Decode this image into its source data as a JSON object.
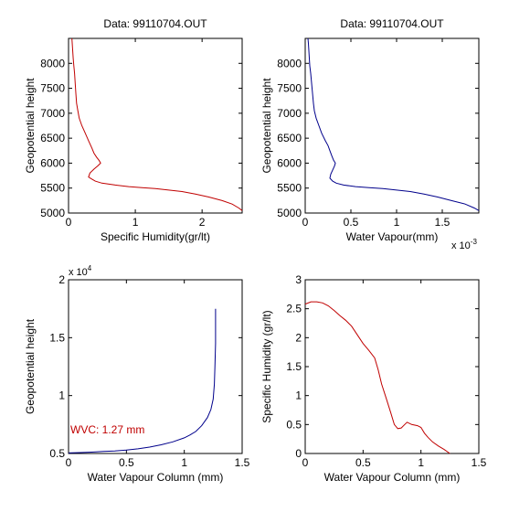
{
  "chart_data": [
    {
      "type": "line",
      "title": "Data: 99110704.OUT",
      "xlabel": "Specific Humidity(gr/lt)",
      "ylabel": "Geopotential height",
      "x_exponent": "",
      "y_exponent": "",
      "xlim": [
        0,
        2.6
      ],
      "ylim": [
        5000,
        8500
      ],
      "xticks": [
        0,
        1,
        2
      ],
      "yticks": [
        5000,
        5500,
        6000,
        6500,
        7000,
        7500,
        8000
      ],
      "xtick_labels": [
        "0",
        "1",
        "2"
      ],
      "ytick_labels": [
        "5000",
        "5500",
        "6000",
        "6500",
        "7000",
        "7500",
        "8000"
      ],
      "color": "#c00000",
      "series": [
        {
          "x": [
            2.6,
            2.55,
            2.45,
            2.3,
            2.1,
            1.9,
            1.7,
            1.5,
            1.3,
            1.1,
            0.9,
            0.7,
            0.5,
            0.4,
            0.35,
            0.3,
            0.32,
            0.38,
            0.44,
            0.48,
            0.46,
            0.42,
            0.38,
            0.35,
            0.3,
            0.25,
            0.2,
            0.16,
            0.14,
            0.12,
            0.11,
            0.1,
            0.09,
            0.08,
            0.07,
            0.06,
            0.05
          ],
          "y": [
            5050,
            5100,
            5180,
            5250,
            5320,
            5380,
            5430,
            5460,
            5490,
            5510,
            5530,
            5560,
            5600,
            5640,
            5680,
            5720,
            5800,
            5880,
            5950,
            6000,
            6050,
            6120,
            6200,
            6300,
            6450,
            6600,
            6750,
            6900,
            7050,
            7200,
            7400,
            7600,
            7800,
            7950,
            8100,
            8300,
            8500
          ]
        }
      ]
    },
    {
      "type": "line",
      "title": "Data: 99110704.OUT",
      "xlabel": "Water Vapour(mm)",
      "ylabel": "Geopotential height",
      "x_exponent": "x 10",
      "x_exponent_power": "-3",
      "y_exponent": "",
      "xlim": [
        0,
        1.9
      ],
      "ylim": [
        5000,
        8500
      ],
      "xticks": [
        0,
        0.5,
        1,
        1.5
      ],
      "yticks": [
        5000,
        5500,
        6000,
        6500,
        7000,
        7500,
        8000
      ],
      "xtick_labels": [
        "0",
        "0.5",
        "1",
        "1.5"
      ],
      "ytick_labels": [
        "5000",
        "5500",
        "6000",
        "6500",
        "7000",
        "7500",
        "8000"
      ],
      "color": "#00008b",
      "series": [
        {
          "x": [
            1.9,
            1.85,
            1.75,
            1.6,
            1.45,
            1.3,
            1.15,
            1.0,
            0.85,
            0.7,
            0.55,
            0.42,
            0.34,
            0.3,
            0.27,
            0.28,
            0.3,
            0.32,
            0.33,
            0.31,
            0.29,
            0.27,
            0.25,
            0.22,
            0.18,
            0.15,
            0.12,
            0.1,
            0.09,
            0.08,
            0.07,
            0.06,
            0.05,
            0.045,
            0.04,
            0.035,
            0.03
          ],
          "y": [
            5050,
            5100,
            5180,
            5250,
            5320,
            5380,
            5430,
            5460,
            5490,
            5510,
            5530,
            5560,
            5600,
            5640,
            5700,
            5780,
            5860,
            5940,
            6000,
            6060,
            6150,
            6250,
            6350,
            6450,
            6600,
            6750,
            6900,
            7050,
            7200,
            7400,
            7600,
            7800,
            7950,
            8100,
            8250,
            8400,
            8500
          ]
        }
      ]
    },
    {
      "type": "line",
      "title": "",
      "xlabel": "Water Vapour Column (mm)",
      "ylabel": "Geopotential height",
      "x_exponent": "",
      "y_exponent": "x 10",
      "y_exponent_power": "4",
      "annotation": "WVC: 1.27 mm",
      "annotation_color": "#c00000",
      "xlim": [
        0,
        1.5
      ],
      "ylim": [
        0.5,
        2.0
      ],
      "xticks": [
        0,
        0.5,
        1,
        1.5
      ],
      "yticks": [
        0.5,
        1,
        1.5,
        2
      ],
      "xtick_labels": [
        "0",
        "0.5",
        "1",
        "1.5"
      ],
      "ytick_labels": [
        "0.5",
        "1",
        "1.5",
        "2"
      ],
      "color": "#00008b",
      "series": [
        {
          "x": [
            0,
            0.1,
            0.2,
            0.3,
            0.4,
            0.5,
            0.6,
            0.7,
            0.8,
            0.9,
            1.0,
            1.05,
            1.1,
            1.15,
            1.2,
            1.23,
            1.25,
            1.26,
            1.265,
            1.27,
            1.27
          ],
          "y": [
            0.505,
            0.508,
            0.512,
            0.517,
            0.522,
            0.53,
            0.54,
            0.555,
            0.575,
            0.6,
            0.635,
            0.66,
            0.69,
            0.74,
            0.81,
            0.88,
            0.97,
            1.1,
            1.25,
            1.45,
            1.75
          ]
        }
      ]
    },
    {
      "type": "line",
      "title": "",
      "xlabel": "Water Vapour Column (mm)",
      "ylabel": "Specific Humidity (gr/lt)",
      "x_exponent": "",
      "y_exponent": "",
      "xlim": [
        0,
        1.5
      ],
      "ylim": [
        0,
        3
      ],
      "xticks": [
        0,
        0.5,
        1,
        1.5
      ],
      "yticks": [
        0,
        0.5,
        1,
        1.5,
        2,
        2.5,
        3
      ],
      "xtick_labels": [
        "0",
        "0.5",
        "1",
        "1.5"
      ],
      "ytick_labels": [
        "0",
        "0.5",
        "1",
        "1.5",
        "2",
        "2.5",
        "3"
      ],
      "color": "#c00000",
      "series": [
        {
          "x": [
            0,
            0.05,
            0.1,
            0.15,
            0.2,
            0.25,
            0.3,
            0.35,
            0.4,
            0.45,
            0.5,
            0.55,
            0.6,
            0.63,
            0.66,
            0.7,
            0.74,
            0.77,
            0.8,
            0.83,
            0.86,
            0.88,
            0.92,
            0.97,
            1.0,
            1.03,
            1.06,
            1.1,
            1.15,
            1.2,
            1.25
          ],
          "y": [
            2.58,
            2.62,
            2.62,
            2.6,
            2.55,
            2.47,
            2.38,
            2.3,
            2.2,
            2.05,
            1.9,
            1.78,
            1.65,
            1.45,
            1.2,
            0.95,
            0.7,
            0.5,
            0.43,
            0.44,
            0.5,
            0.54,
            0.5,
            0.48,
            0.45,
            0.35,
            0.28,
            0.2,
            0.13,
            0.07,
            0.0
          ]
        }
      ]
    }
  ]
}
